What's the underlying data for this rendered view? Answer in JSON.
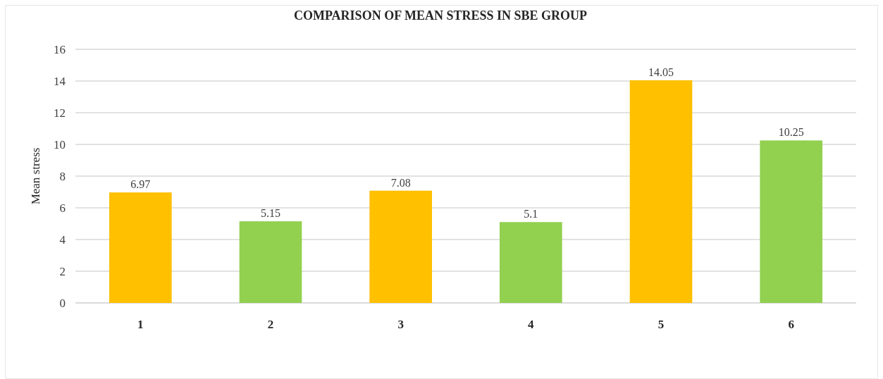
{
  "chart_data": {
    "type": "bar",
    "title": "COMPARISON OF MEAN STRESS IN SBE GROUP",
    "ylabel": "Mean stress",
    "categories": [
      "1",
      "2",
      "3",
      "4",
      "5",
      "6"
    ],
    "values": [
      6.97,
      5.15,
      7.08,
      5.1,
      14.05,
      10.25
    ],
    "colors": [
      "#ffc000",
      "#92d050",
      "#ffc000",
      "#92d050",
      "#ffc000",
      "#92d050"
    ],
    "ylim": [
      0,
      16
    ],
    "yticks": [
      0,
      2,
      4,
      6,
      8,
      10,
      12,
      14,
      16
    ],
    "grid": "y",
    "data_labels": true
  }
}
